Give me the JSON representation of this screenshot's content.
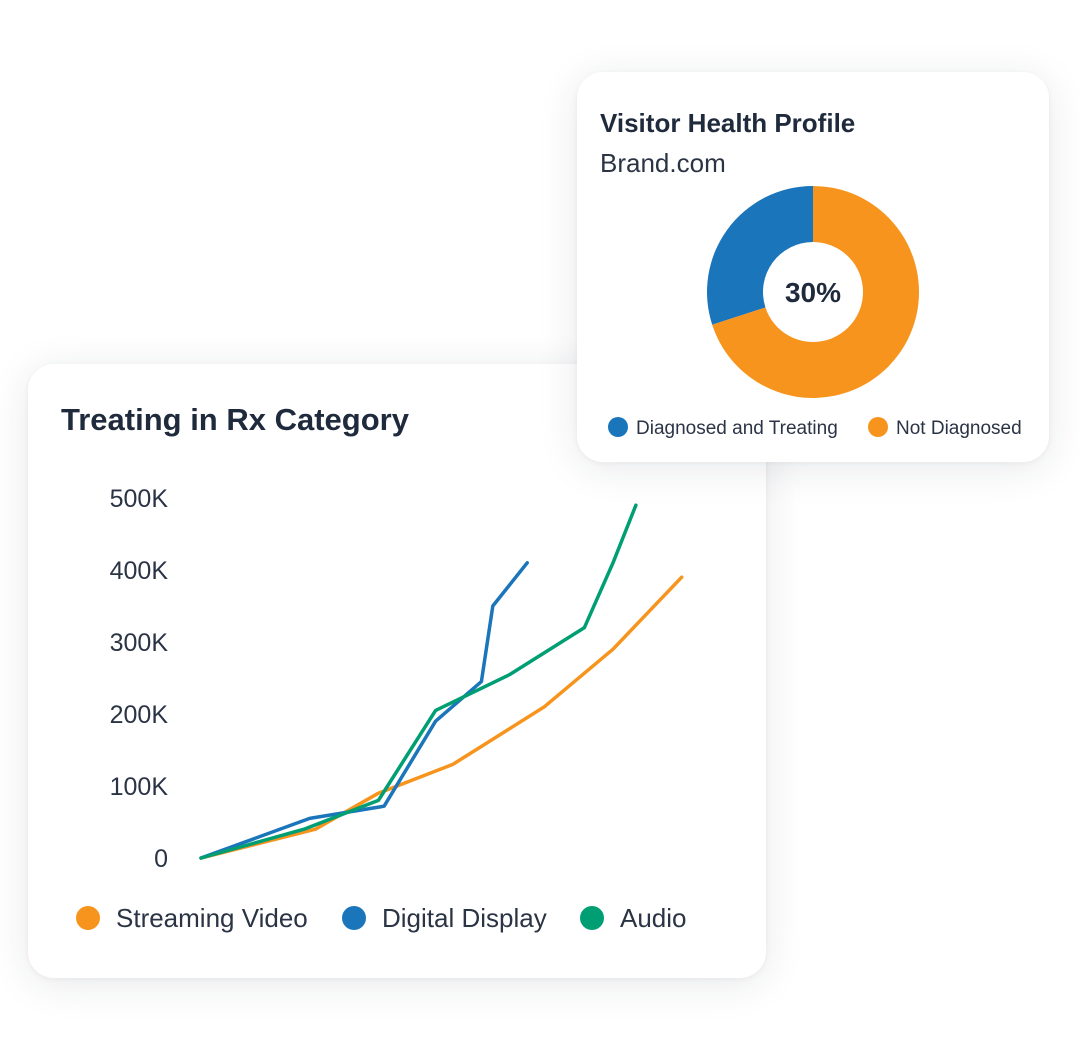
{
  "colors": {
    "orange": "#F7941D",
    "blue": "#1B75BB",
    "green": "#009E73",
    "text": "#1f2a3c"
  },
  "line_card": {
    "title": "Treating in Rx Category"
  },
  "donut_card": {
    "title": "Visitor Health Profile",
    "subtitle": "Brand.com",
    "center_label": "30%",
    "legend": [
      {
        "label": "Diagnosed and Treating",
        "color": "#1B75BB"
      },
      {
        "label": "Not Diagnosed",
        "color": "#F7941D"
      }
    ]
  },
  "chart_data": [
    {
      "type": "line",
      "title": "Treating in Rx Category",
      "xlabel": "",
      "ylabel": "",
      "ylim": [
        0,
        500000
      ],
      "ytick_values": [
        0,
        100000,
        200000,
        300000,
        400000,
        500000
      ],
      "ytick_labels": [
        "0",
        "100K",
        "200K",
        "300K",
        "400K",
        "500K"
      ],
      "grid": false,
      "legend_position": "bottom",
      "series": [
        {
          "name": "Streaming Video",
          "color": "#F7941D",
          "points": [
            [
              0,
              0
            ],
            [
              2,
              40000
            ],
            [
              3.1,
              90000
            ],
            [
              4.4,
              130000
            ],
            [
              6,
              210000
            ],
            [
              7.2,
              290000
            ],
            [
              8.4,
              390000
            ]
          ]
        },
        {
          "name": "Digital Display",
          "color": "#1B75BB",
          "points": [
            [
              0,
              0
            ],
            [
              1.9,
              55000
            ],
            [
              3.2,
              72000
            ],
            [
              4.1,
              190000
            ],
            [
              4.9,
              245000
            ],
            [
              5.1,
              350000
            ],
            [
              5.7,
              410000
            ]
          ]
        },
        {
          "name": "Audio",
          "color": "#009E73",
          "points": [
            [
              0,
              0
            ],
            [
              1.8,
              40000
            ],
            [
              3.1,
              80000
            ],
            [
              4.1,
              205000
            ],
            [
              5.4,
              255000
            ],
            [
              6.7,
              320000
            ],
            [
              7.2,
              410000
            ],
            [
              7.6,
              490000
            ]
          ]
        }
      ]
    },
    {
      "type": "pie",
      "title": "Visitor Health Profile",
      "subtitle": "Brand.com",
      "labels": [
        "Diagnosed and Treating",
        "Not Diagnosed"
      ],
      "values": [
        30,
        70
      ],
      "colors": [
        "#1B75BB",
        "#F7941D"
      ],
      "center_text": "30%",
      "donut": true
    }
  ]
}
